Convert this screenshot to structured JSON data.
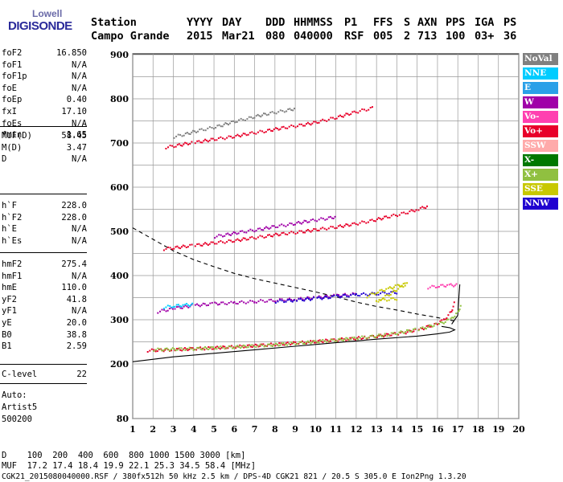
{
  "logo": {
    "line1": "Lowell",
    "line2": "DIGISONDE"
  },
  "header": {
    "row1": [
      "Station",
      "YYYY",
      "DAY",
      "DDD",
      "HHMMSS",
      "P1",
      "FFS",
      "S",
      "AXN",
      "PPS",
      "IGA",
      "PS"
    ],
    "row2": [
      "Campo Grande",
      "2015",
      "Mar21",
      "080",
      "040000",
      "RSF",
      "005",
      "2",
      "713",
      "100",
      "03+",
      "36"
    ]
  },
  "params": {
    "group1": [
      {
        "label": "foF2",
        "value": "16.850"
      },
      {
        "label": "foF1",
        "value": "N/A"
      },
      {
        "label": "foF1p",
        "value": "N/A"
      },
      {
        "label": "foE",
        "value": "N/A"
      },
      {
        "label": "foEp",
        "value": "0.40"
      },
      {
        "label": "fxI",
        "value": "17.10"
      },
      {
        "label": "foEs",
        "value": "N/A"
      },
      {
        "label": "fmin",
        "value": "1.65"
      }
    ],
    "group2": [
      {
        "label": "MUF(D)",
        "value": "58.45"
      },
      {
        "label": "M(D)",
        "value": "3.47"
      },
      {
        "label": "D",
        "value": "N/A"
      }
    ],
    "group3": [
      {
        "label": "h`F",
        "value": "228.0"
      },
      {
        "label": "h`F2",
        "value": "228.0"
      },
      {
        "label": "h`E",
        "value": "N/A"
      },
      {
        "label": "h`Es",
        "value": "N/A"
      }
    ],
    "group4": [
      {
        "label": "hmF2",
        "value": "275.4"
      },
      {
        "label": "hmF1",
        "value": "N/A"
      },
      {
        "label": "hmE",
        "value": "110.0"
      },
      {
        "label": "yF2",
        "value": "41.8"
      },
      {
        "label": "yF1",
        "value": "N/A"
      },
      {
        "label": "yE",
        "value": "20.0"
      },
      {
        "label": "B0",
        "value": "38.8"
      },
      {
        "label": "B1",
        "value": "2.59"
      }
    ],
    "group5": [
      {
        "label": "C-level",
        "value": "22"
      }
    ],
    "auto": [
      "Auto:",
      "Artist5",
      "500200"
    ]
  },
  "legend": [
    {
      "label": "NoVal",
      "color": "#808080"
    },
    {
      "label": "NNE",
      "color": "#00ccff"
    },
    {
      "label": "E",
      "color": "#2aa0e8"
    },
    {
      "label": "W",
      "color": "#a000a8"
    },
    {
      "label": "Vo-",
      "color": "#ff40b0"
    },
    {
      "label": "Vo+",
      "color": "#e8002a"
    },
    {
      "label": "SSW",
      "color": "#ffaaaa"
    },
    {
      "label": "X-",
      "color": "#007800"
    },
    {
      "label": "X+",
      "color": "#90c040"
    },
    {
      "label": "SSE",
      "color": "#c8c800"
    },
    {
      "label": "NNW",
      "color": "#2000d0"
    }
  ],
  "footer": {
    "line1": "D    100  200  400  600  800 1000 1500 3000 [km]",
    "line2": "MUF  17.2 17.4 18.4 19.9 22.1 25.3 34.5 58.4 [MHz]",
    "line3": "CGK21_2015080040000.RSF / 380fx512h 50 kHz 2.5 km / DPS-4D CGK21 821 / 20.5 S 305.0 E Ion2Png 1.3.20"
  },
  "chart_data": {
    "type": "scatter",
    "x_ticks": [
      "1",
      "2",
      "3",
      "4",
      "5",
      "6",
      "7",
      "8",
      "9",
      "10",
      "11",
      "12",
      "13",
      "14",
      "15",
      "16",
      "17",
      "18",
      "19",
      "20"
    ],
    "y_ticks": [
      "80",
      "200",
      "300",
      "400",
      "500",
      "600",
      "700",
      "800",
      "900"
    ],
    "xlim": [
      1,
      20
    ],
    "ylim_km": [
      80,
      900
    ],
    "grid": true,
    "legend_position": "right",
    "traces": [
      {
        "name": "Vo+",
        "color": "#e8002a",
        "points": [
          [
            1.7,
            232
          ],
          [
            3,
            234
          ],
          [
            5,
            238
          ],
          [
            7,
            243
          ],
          [
            9,
            249
          ],
          [
            11,
            256
          ],
          [
            12.5,
            262
          ],
          [
            14,
            270
          ],
          [
            15,
            279
          ],
          [
            15.8,
            290
          ],
          [
            16.3,
            300
          ],
          [
            16.7,
            320
          ],
          [
            16.85,
            345
          ]
        ]
      },
      {
        "name": "X+",
        "color": "#90c040",
        "points": [
          [
            2,
            234
          ],
          [
            4,
            236
          ],
          [
            6,
            240
          ],
          [
            8,
            245
          ],
          [
            10,
            252
          ],
          [
            12,
            260
          ],
          [
            13.5,
            268
          ],
          [
            15,
            280
          ],
          [
            16,
            292
          ],
          [
            16.6,
            302
          ],
          [
            17,
            318
          ],
          [
            17.2,
            338
          ]
        ]
      },
      {
        "name": "W",
        "color": "#a000a8",
        "points": [
          [
            2.2,
            320
          ],
          [
            3,
            328
          ],
          [
            4,
            334
          ],
          [
            5,
            338
          ],
          [
            6,
            340
          ],
          [
            7,
            343
          ],
          [
            8,
            346
          ],
          [
            9,
            348
          ],
          [
            10,
            352
          ],
          [
            11,
            356
          ],
          [
            12,
            360
          ]
        ]
      },
      {
        "name": "NNW",
        "color": "#2000d0",
        "points": [
          [
            8,
            343
          ],
          [
            9,
            346
          ],
          [
            10,
            350
          ],
          [
            11,
            354
          ],
          [
            12,
            358
          ],
          [
            13,
            361
          ],
          [
            14,
            364
          ]
        ]
      },
      {
        "name": "Vo-",
        "color": "#ff40b0",
        "points": [
          [
            15.5,
            375
          ],
          [
            16,
            378
          ],
          [
            16.5,
            380
          ],
          [
            17,
            380
          ]
        ]
      },
      {
        "name": "SSE",
        "color": "#c8c800",
        "points": [
          [
            12.5,
            355
          ],
          [
            13,
            365
          ],
          [
            13.5,
            372
          ],
          [
            14,
            378
          ],
          [
            14.5,
            383
          ],
          [
            13,
            345
          ],
          [
            14,
            350
          ]
        ]
      },
      {
        "name": "NNE",
        "color": "#00ccff",
        "points": [
          [
            2.5,
            330
          ],
          [
            3,
            333
          ],
          [
            3.5,
            335
          ],
          [
            4,
            336
          ]
        ]
      },
      {
        "name": "Vo+ 2nd hop",
        "color": "#e8002a",
        "points": [
          [
            2.5,
            462
          ],
          [
            4,
            470
          ],
          [
            6,
            481
          ],
          [
            8,
            494
          ],
          [
            10,
            505
          ],
          [
            12,
            519
          ],
          [
            14,
            539
          ],
          [
            15,
            552
          ],
          [
            15.5,
            560
          ]
        ]
      },
      {
        "name": "W 2nd hop",
        "color": "#a000a8",
        "points": [
          [
            5,
            490
          ],
          [
            7,
            505
          ],
          [
            9,
            520
          ],
          [
            11,
            535
          ]
        ]
      },
      {
        "name": "Vo+ 3rd hop",
        "color": "#e8002a",
        "points": [
          [
            2.6,
            692
          ],
          [
            4,
            703
          ],
          [
            6,
            717
          ],
          [
            8,
            733
          ],
          [
            10,
            748
          ],
          [
            12,
            772
          ],
          [
            12.8,
            782
          ]
        ]
      },
      {
        "name": "NoVal",
        "color": "#808080",
        "points": [
          [
            3,
            716
          ],
          [
            5,
            738
          ],
          [
            7,
            762
          ],
          [
            9,
            780
          ]
        ]
      }
    ],
    "profile_curve": [
      [
        1,
        205
      ],
      [
        3,
        216
      ],
      [
        5,
        224
      ],
      [
        7,
        232
      ],
      [
        9,
        240
      ],
      [
        11,
        248
      ],
      [
        13,
        256
      ],
      [
        15,
        263
      ],
      [
        16,
        268
      ],
      [
        16.6,
        272
      ],
      [
        16.85,
        277
      ],
      [
        16.6,
        282
      ],
      [
        16.2,
        285
      ]
    ],
    "curve_dashed": [
      [
        1,
        508
      ],
      [
        2,
        482
      ],
      [
        3,
        456
      ],
      [
        4,
        436
      ],
      [
        5,
        420
      ],
      [
        6,
        405
      ],
      [
        7,
        393
      ],
      [
        8,
        383
      ],
      [
        9,
        373
      ],
      [
        10,
        363
      ],
      [
        11,
        352
      ],
      [
        12,
        340
      ],
      [
        13,
        330
      ],
      [
        14,
        322
      ],
      [
        15,
        313
      ],
      [
        16,
        305
      ],
      [
        16.5,
        300
      ],
      [
        17,
        296
      ]
    ],
    "curve_black_upper": [
      [
        16.7,
        290
      ],
      [
        17,
        310
      ],
      [
        17.05,
        350
      ],
      [
        17.1,
        380
      ]
    ]
  }
}
